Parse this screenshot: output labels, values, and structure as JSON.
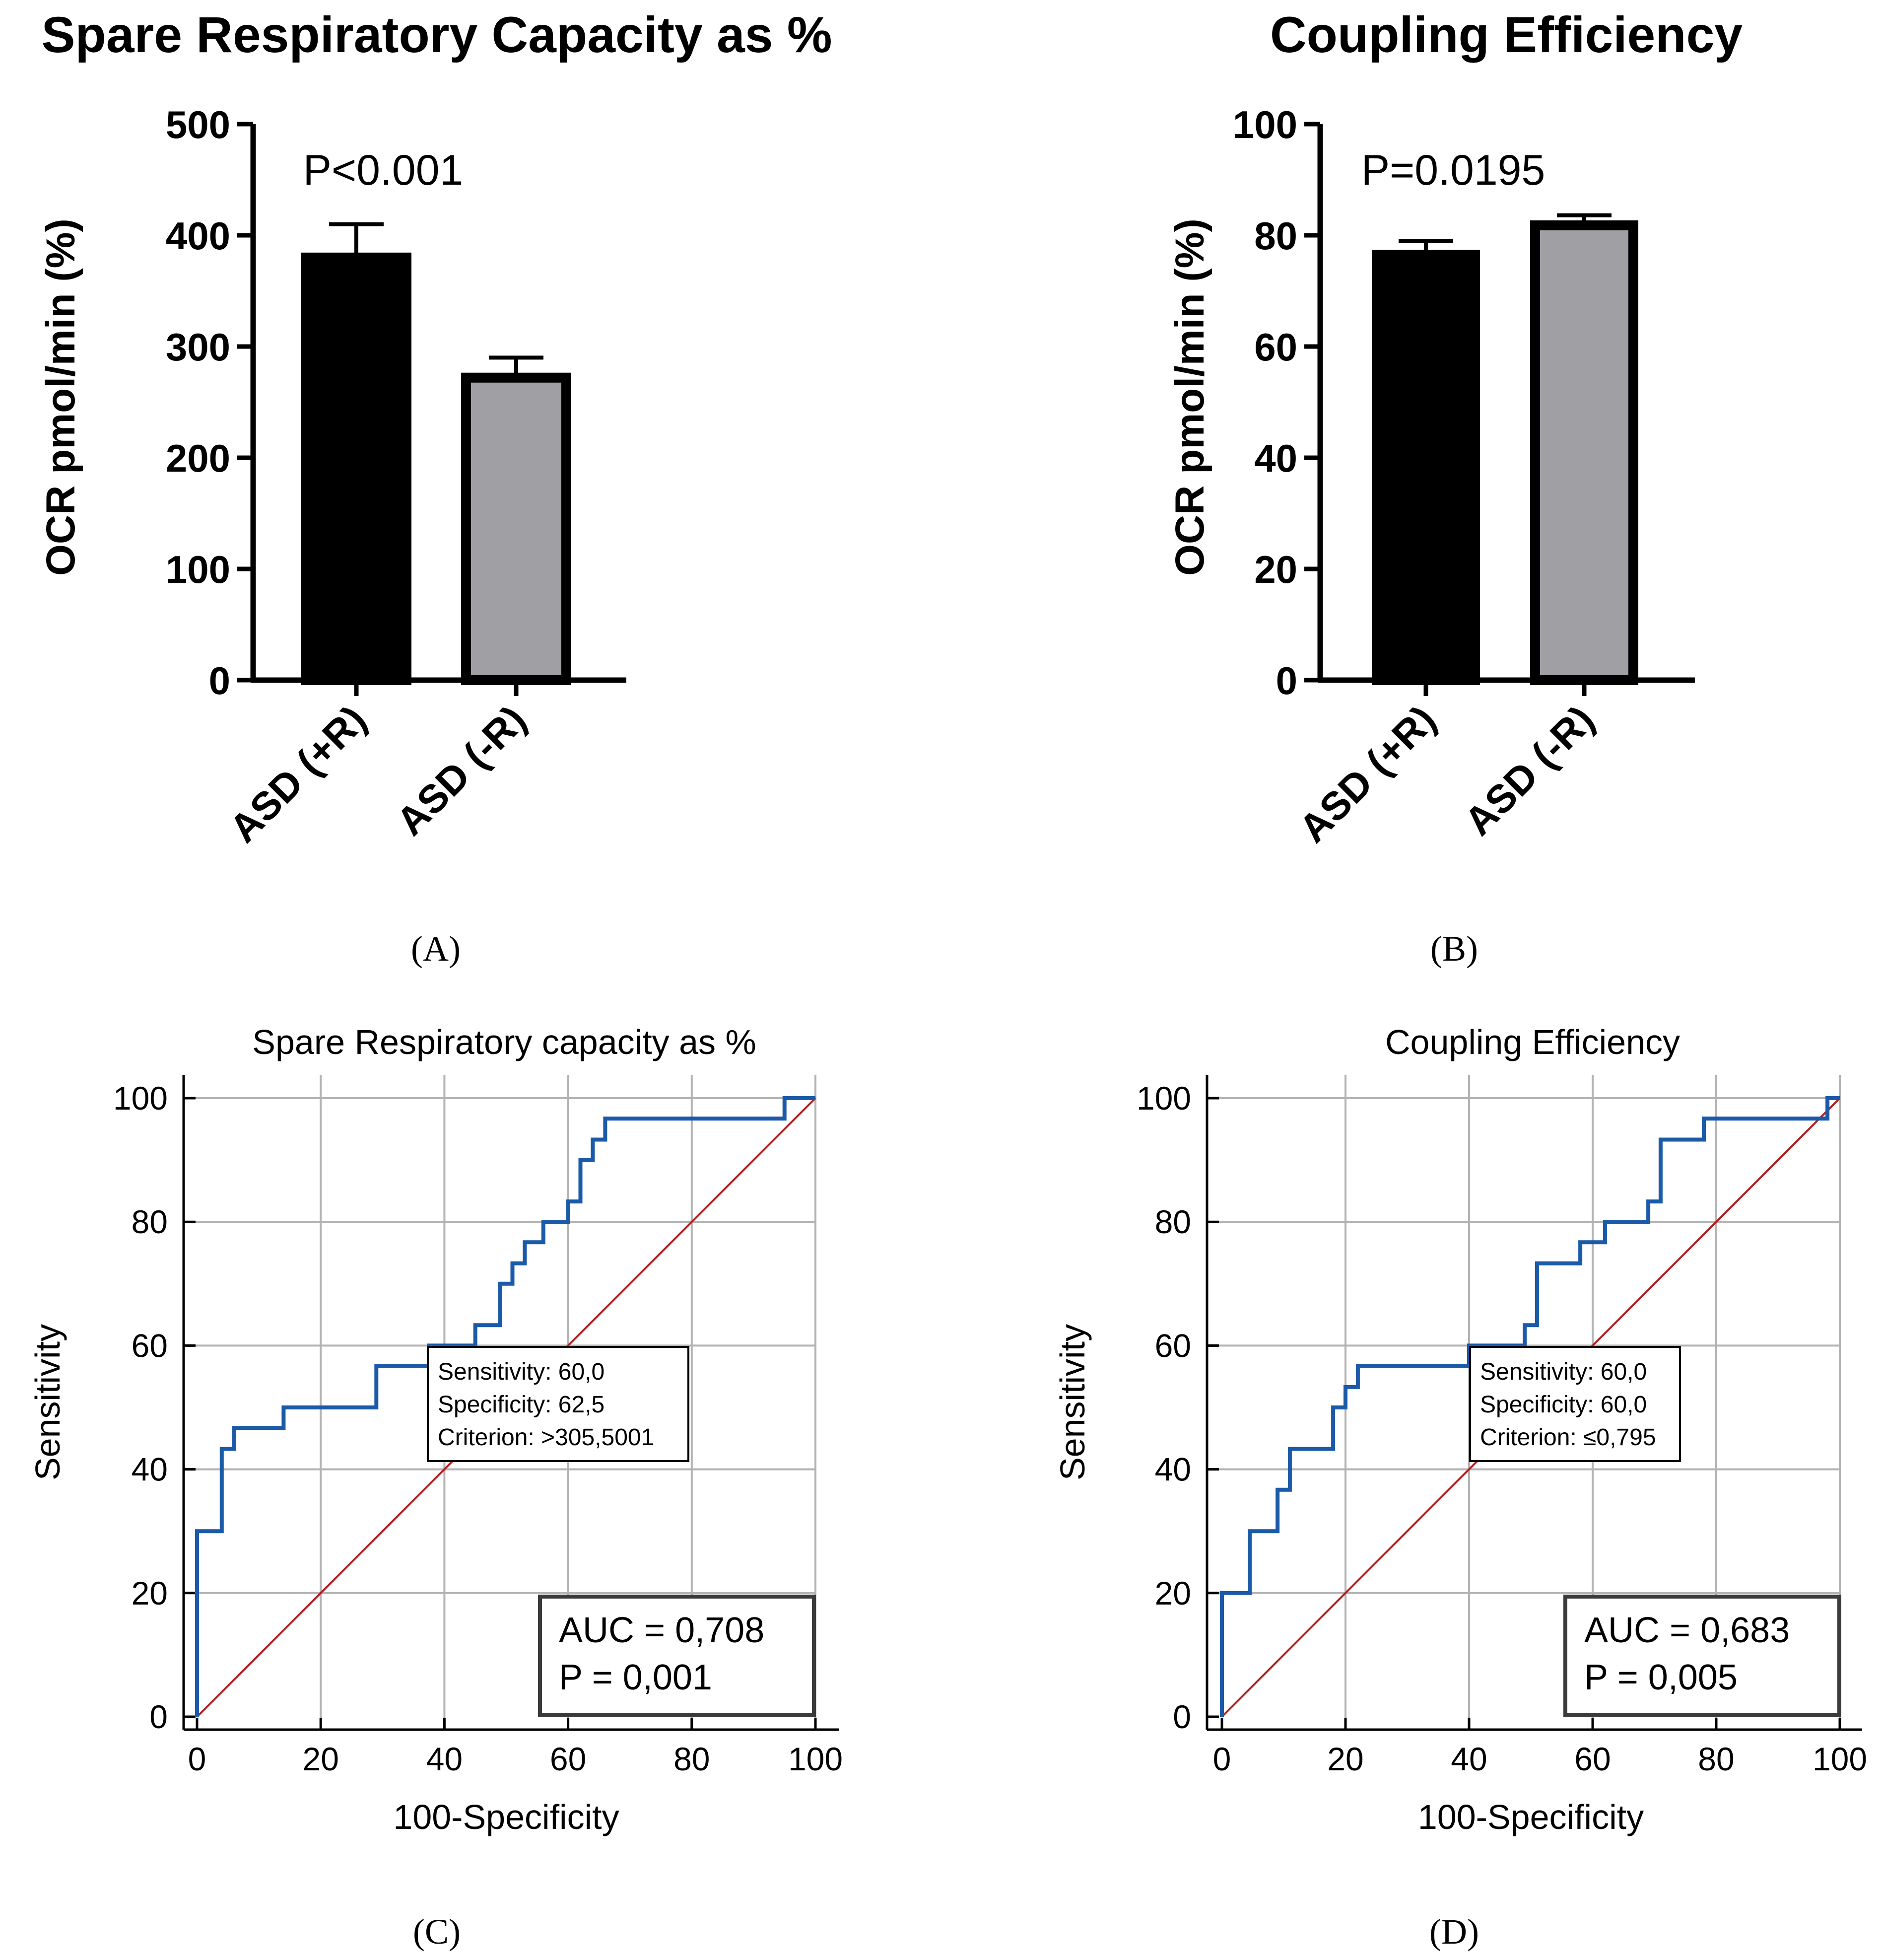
{
  "colors": {
    "bar_black": "#000000",
    "bar_grey": "#a0a0a4",
    "roc_line": "#1a5aa8",
    "diagonal": "#b02020",
    "grid": "#b3b3b3"
  },
  "chart_data": [
    {
      "type": "bar",
      "panel": "(A)",
      "title": "Spare Respiratory Capacity as %",
      "ylabel": "OCR pmol/min (%)",
      "categories": [
        "ASD (+R)",
        "ASD (-R)"
      ],
      "values": [
        380,
        272
      ],
      "errors": [
        30,
        18
      ],
      "ylim": [
        0,
        500
      ],
      "yticks": [
        0,
        100,
        200,
        300,
        400,
        500
      ],
      "annotation": "P<0.001"
    },
    {
      "type": "bar",
      "panel": "(B)",
      "title": "Coupling Efficiency",
      "ylabel": "OCR pmol/min (%)",
      "categories": [
        "ASD (+R)",
        "ASD (-R)"
      ],
      "values": [
        76.5,
        81.8
      ],
      "errors": [
        2.5,
        1.8
      ],
      "ylim": [
        0,
        100
      ],
      "yticks": [
        0,
        20,
        40,
        60,
        80,
        100
      ],
      "annotation": "P=0.0195"
    },
    {
      "type": "line",
      "panel": "(C)",
      "title": "Spare Respiratory capacity as %",
      "xlabel": "100-Specificity",
      "ylabel": "Sensitivity",
      "xlim": [
        0,
        100
      ],
      "ylim": [
        0,
        100
      ],
      "ticks": [
        0,
        20,
        40,
        60,
        80,
        100
      ],
      "grid": true,
      "criterion_lines": [
        "Sensitivity: 60,0",
        "Specificity: 62,5",
        "Criterion: >305,5001"
      ],
      "auc_lines": [
        "AUC = 0,708",
        "P = 0,001"
      ],
      "series": [
        {
          "name": "ROC",
          "x": [
            0,
            0,
            4,
            4,
            6,
            6,
            14,
            14,
            29,
            29,
            37.5,
            37.5,
            45,
            45,
            49,
            49,
            51,
            51,
            53,
            53,
            56,
            56,
            60,
            60,
            62,
            62,
            64,
            64,
            66,
            66,
            75,
            75,
            95,
            95,
            100
          ],
          "y": [
            0,
            30,
            30,
            43.3,
            43.3,
            46.7,
            46.7,
            50,
            50,
            56.7,
            56.7,
            60,
            60,
            63.3,
            63.3,
            70,
            70,
            73.3,
            73.3,
            76.7,
            76.7,
            80,
            80,
            83.3,
            83.3,
            90,
            90,
            93.3,
            93.3,
            96.7,
            96.7,
            96.7,
            96.7,
            100,
            100
          ]
        },
        {
          "name": "Reference",
          "x": [
            0,
            100
          ],
          "y": [
            0,
            100
          ]
        }
      ]
    },
    {
      "type": "line",
      "panel": "(D)",
      "title": "Coupling Efficiency",
      "xlabel": "100-Specificity",
      "ylabel": "Sensitivity",
      "xlim": [
        0,
        100
      ],
      "ylim": [
        0,
        100
      ],
      "ticks": [
        0,
        20,
        40,
        60,
        80,
        100
      ],
      "grid": true,
      "criterion_lines": [
        "Sensitivity: 60,0",
        "Specificity: 60,0",
        "Criterion: ≤0,795"
      ],
      "auc_lines": [
        "AUC = 0,683",
        "P = 0,005"
      ],
      "series": [
        {
          "name": "ROC",
          "x": [
            0,
            0,
            4.5,
            4.5,
            9,
            9,
            11,
            11,
            18,
            18,
            20,
            20,
            22,
            22,
            40,
            40,
            49,
            49,
            51,
            51,
            58,
            58,
            62,
            62,
            69,
            69,
            71,
            71,
            78,
            78,
            98,
            98,
            100
          ],
          "y": [
            0,
            20,
            20,
            30,
            30,
            36.7,
            36.7,
            43.3,
            43.3,
            50,
            50,
            53.3,
            53.3,
            56.7,
            56.7,
            60,
            60,
            63.3,
            63.3,
            73.3,
            73.3,
            76.7,
            76.7,
            80,
            80,
            83.3,
            83.3,
            93.3,
            93.3,
            96.7,
            96.7,
            100,
            100
          ]
        },
        {
          "name": "Reference",
          "x": [
            0,
            100
          ],
          "y": [
            0,
            100
          ]
        }
      ]
    }
  ]
}
